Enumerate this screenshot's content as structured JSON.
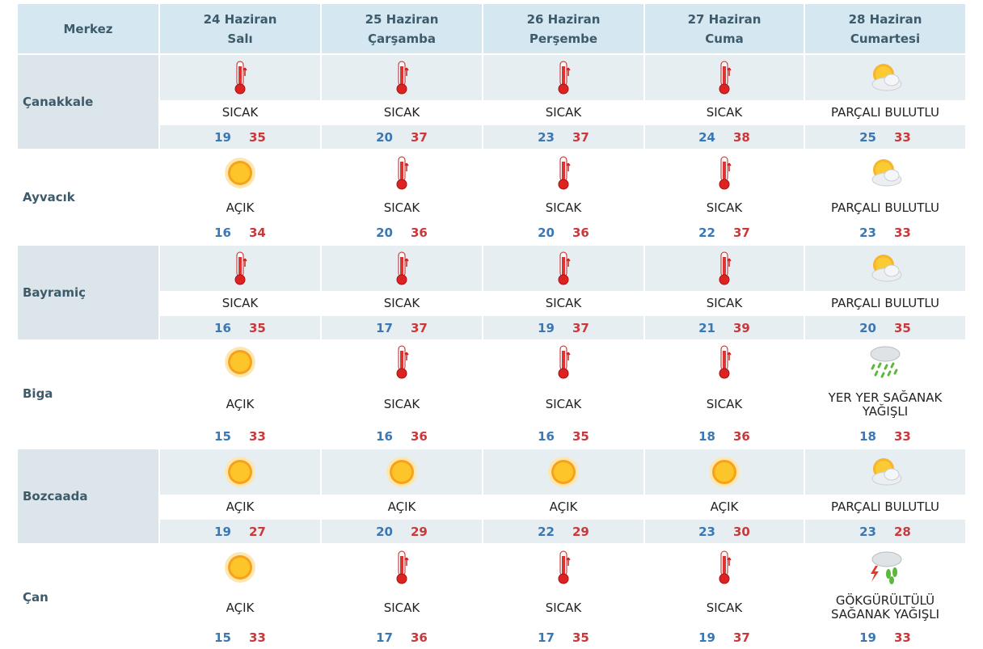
{
  "header": {
    "corner": "Merkez",
    "days": [
      {
        "date": "24 Haziran",
        "day": "Salı"
      },
      {
        "date": "25 Haziran",
        "day": "Çarşamba"
      },
      {
        "date": "26 Haziran",
        "day": "Perşembe"
      },
      {
        "date": "27 Haziran",
        "day": "Cuma"
      },
      {
        "date": "28 Haziran",
        "day": "Cumartesi"
      }
    ]
  },
  "rows": [
    {
      "name": "Çanakkale",
      "cells": [
        {
          "condition": "SICAK",
          "min": "19",
          "max": "35"
        },
        {
          "condition": "SICAK",
          "min": "20",
          "max": "37"
        },
        {
          "condition": "SICAK",
          "min": "23",
          "max": "37"
        },
        {
          "condition": "SICAK",
          "min": "24",
          "max": "38"
        },
        {
          "condition": "PARÇALI BULUTLU",
          "min": "25",
          "max": "33"
        }
      ]
    },
    {
      "name": "Ayvacık",
      "cells": [
        {
          "condition": "AÇIK",
          "min": "16",
          "max": "34"
        },
        {
          "condition": "SICAK",
          "min": "20",
          "max": "36"
        },
        {
          "condition": "SICAK",
          "min": "20",
          "max": "36"
        },
        {
          "condition": "SICAK",
          "min": "22",
          "max": "37"
        },
        {
          "condition": "PARÇALI BULUTLU",
          "min": "23",
          "max": "33"
        }
      ]
    },
    {
      "name": "Bayramiç",
      "cells": [
        {
          "condition": "SICAK",
          "min": "16",
          "max": "35"
        },
        {
          "condition": "SICAK",
          "min": "17",
          "max": "37"
        },
        {
          "condition": "SICAK",
          "min": "19",
          "max": "37"
        },
        {
          "condition": "SICAK",
          "min": "21",
          "max": "39"
        },
        {
          "condition": "PARÇALI BULUTLU",
          "min": "20",
          "max": "35"
        }
      ]
    },
    {
      "name": "Biga",
      "cells": [
        {
          "condition": "AÇIK",
          "min": "15",
          "max": "33"
        },
        {
          "condition": "SICAK",
          "min": "16",
          "max": "36"
        },
        {
          "condition": "SICAK",
          "min": "16",
          "max": "35"
        },
        {
          "condition": "SICAK",
          "min": "18",
          "max": "36"
        },
        {
          "condition": "YER YER SAĞANAK YAĞIŞLI",
          "min": "18",
          "max": "33"
        }
      ]
    },
    {
      "name": "Bozcaada",
      "cells": [
        {
          "condition": "AÇIK",
          "min": "19",
          "max": "27"
        },
        {
          "condition": "AÇIK",
          "min": "20",
          "max": "29"
        },
        {
          "condition": "AÇIK",
          "min": "22",
          "max": "29"
        },
        {
          "condition": "AÇIK",
          "min": "23",
          "max": "30"
        },
        {
          "condition": "PARÇALI BULUTLU",
          "min": "23",
          "max": "28"
        }
      ]
    },
    {
      "name": "Çan",
      "cells": [
        {
          "condition": "AÇIK",
          "min": "15",
          "max": "33"
        },
        {
          "condition": "SICAK",
          "min": "17",
          "max": "36"
        },
        {
          "condition": "SICAK",
          "min": "17",
          "max": "35"
        },
        {
          "condition": "SICAK",
          "min": "19",
          "max": "37"
        },
        {
          "condition": "GÖKGÜRÜLTÜLÜ SAĞANAK YAĞIŞLI",
          "min": "19",
          "max": "33"
        }
      ]
    }
  ]
}
